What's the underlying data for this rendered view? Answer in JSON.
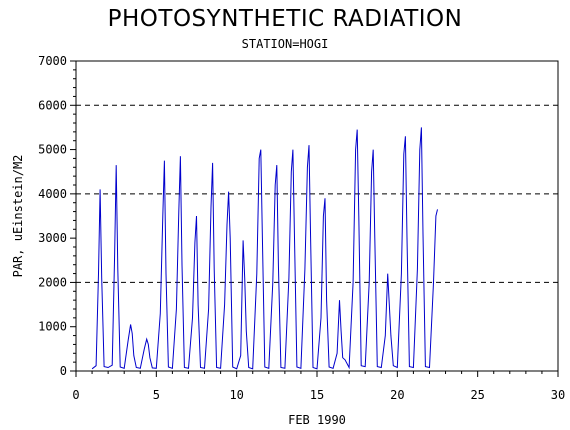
{
  "chart_data": {
    "type": "line",
    "title": "PHOTOSYNTHETIC RADIATION",
    "subtitle": "STATION=HOGI",
    "xlabel": "FEB 1990",
    "ylabel": "PAR, uEinstein/M2",
    "xlim": [
      0,
      30
    ],
    "ylim": [
      0,
      7000
    ],
    "x_ticks": [
      0,
      5,
      10,
      15,
      20,
      25,
      30
    ],
    "y_ticks": [
      0,
      1000,
      2000,
      3000,
      4000,
      5000,
      6000,
      7000
    ],
    "y_tick_labels": [
      "0",
      "1000",
      "2000",
      "3000",
      "4000",
      "5000",
      "6000",
      "7000"
    ],
    "reference_lines": [
      2000,
      4000,
      6000
    ],
    "grid": false,
    "series_color": "#0000cc",
    "series": [
      {
        "x": [
          1.0,
          1.25,
          1.4,
          1.5,
          1.6,
          1.75,
          2.0,
          2.25,
          2.4,
          2.5,
          2.6,
          2.75,
          3.0,
          3.25,
          3.4,
          3.5,
          3.6,
          3.75,
          4.0,
          4.25,
          4.4,
          4.5,
          4.6,
          4.75,
          5.0,
          5.25,
          5.4,
          5.5,
          5.6,
          5.75,
          6.0,
          6.25,
          6.4,
          6.5,
          6.6,
          6.75,
          7.0,
          7.25,
          7.4,
          7.5,
          7.6,
          7.75,
          8.0,
          8.25,
          8.4,
          8.5,
          8.6,
          8.75,
          9.0,
          9.25,
          9.4,
          9.5,
          9.6,
          9.75,
          10.0,
          10.25,
          10.4,
          10.5,
          10.6,
          10.75,
          11.0,
          11.25,
          11.4,
          11.5,
          11.6,
          11.75,
          12.0,
          12.25,
          12.4,
          12.5,
          12.6,
          12.75,
          13.0,
          13.25,
          13.4,
          13.5,
          13.6,
          13.75,
          14.0,
          14.25,
          14.4,
          14.5,
          14.6,
          14.75,
          15.0,
          15.25,
          15.4,
          15.5,
          15.6,
          15.75,
          16.0,
          16.25,
          16.4,
          16.5,
          16.6,
          16.75,
          17.0,
          17.25,
          17.4,
          17.5,
          17.6,
          17.75,
          18.0,
          18.25,
          18.4,
          18.5,
          18.6,
          18.75,
          19.0,
          19.25,
          19.4,
          19.5,
          19.6,
          19.75,
          20.0,
          20.25,
          20.4,
          20.5,
          20.6,
          20.75,
          21.0,
          21.25,
          21.4,
          21.5,
          21.6,
          21.75,
          22.0,
          22.25,
          22.4,
          22.5
        ],
        "y": [
          50,
          120,
          2200,
          4100,
          2100,
          100,
          80,
          130,
          2600,
          4650,
          2300,
          90,
          60,
          700,
          1050,
          850,
          350,
          80,
          60,
          500,
          720,
          600,
          300,
          70,
          60,
          1300,
          3500,
          4750,
          2200,
          90,
          60,
          1400,
          3600,
          4850,
          2400,
          80,
          60,
          1200,
          2900,
          3500,
          1500,
          80,
          60,
          1400,
          3700,
          4700,
          2300,
          80,
          60,
          1500,
          3300,
          4050,
          3000,
          90,
          50,
          350,
          2950,
          2100,
          900,
          80,
          50,
          2200,
          4800,
          5000,
          3000,
          90,
          60,
          2000,
          4200,
          4650,
          2400,
          80,
          60,
          2100,
          4500,
          5000,
          3000,
          90,
          60,
          2300,
          4600,
          5100,
          3000,
          80,
          50,
          1200,
          3500,
          3900,
          1600,
          90,
          60,
          400,
          1600,
          900,
          300,
          250,
          80,
          2000,
          5000,
          5450,
          3500,
          120,
          100,
          2000,
          4500,
          5000,
          3000,
          100,
          80,
          800,
          2200,
          1500,
          800,
          120,
          80,
          2200,
          4900,
          5300,
          3000,
          100,
          80,
          2300,
          5000,
          5500,
          3100,
          100,
          80,
          2000,
          3500,
          3650
        ]
      }
    ]
  }
}
